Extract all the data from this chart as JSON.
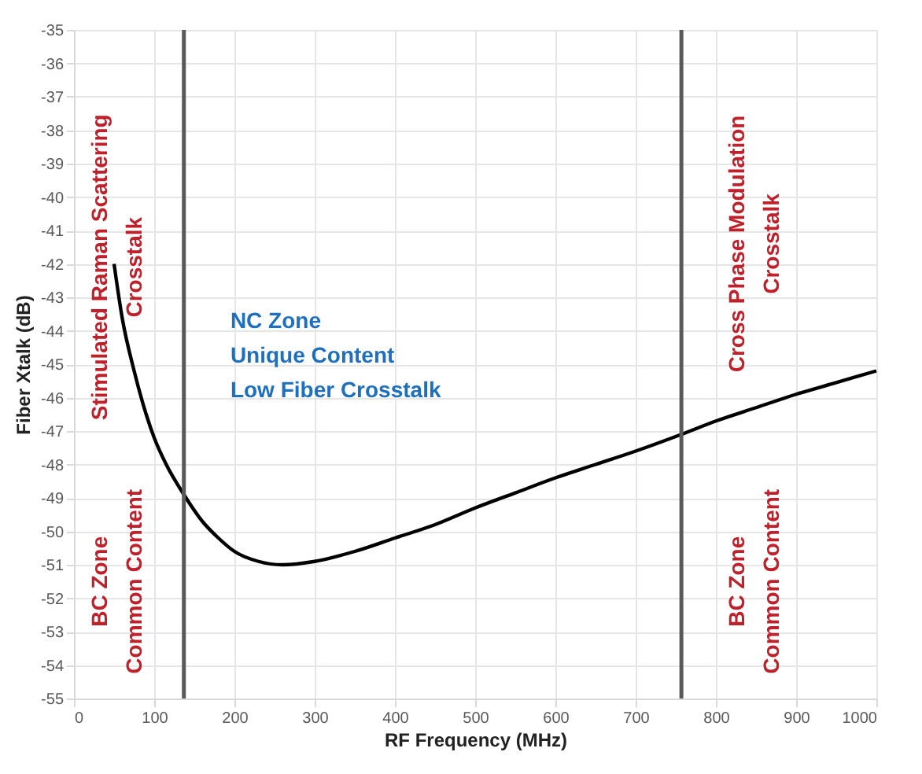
{
  "chart_data": {
    "type": "line",
    "xlabel": "RF Frequency (MHz)",
    "ylabel": "Fiber Xtalk (dB)",
    "x": [
      50,
      60,
      75,
      90,
      100,
      115,
      137,
      160,
      180,
      200,
      230,
      260,
      300,
      350,
      400,
      450,
      500,
      550,
      600,
      650,
      700,
      757,
      800,
      850,
      900,
      950,
      1000
    ],
    "series": [
      {
        "color": "#000000",
        "values": [
          -42.0,
          -43.6,
          -45.2,
          -46.5,
          -47.2,
          -48.0,
          -48.9,
          -49.7,
          -50.2,
          -50.6,
          -50.9,
          -51.0,
          -50.9,
          -50.6,
          -50.2,
          -49.8,
          -49.3,
          -48.85,
          -48.4,
          -48.0,
          -47.6,
          -47.1,
          -46.7,
          -46.3,
          -45.9,
          -45.55,
          -45.2
        ]
      }
    ],
    "xlim": [
      0,
      1000
    ],
    "xticks": [
      0,
      100,
      200,
      300,
      400,
      500,
      600,
      700,
      800,
      900,
      1000
    ],
    "ylim": [
      -55,
      -35
    ],
    "yticks": [
      -55,
      -54,
      -53,
      -52,
      -51,
      -50,
      -49,
      -48,
      -47,
      -46,
      -45,
      -44,
      -43,
      -42,
      -41,
      -40,
      -39,
      -38,
      -37,
      -36,
      -35
    ],
    "grid": true,
    "marker": "none",
    "line_style": "solid",
    "ref_lines": [
      {
        "axis": "x",
        "value": 137,
        "color": "#595959"
      },
      {
        "axis": "x",
        "value": 757,
        "color": "#595959"
      }
    ],
    "annotations": [
      "Stimulated Raman Scattering\nCrosstalk",
      "BC Zone\nCommon Content",
      "NC Zone\nUnique Content\nLow Fiber Crosstalk",
      "Cross Phase Modulation\nCrosstalk",
      "BC Zone\nCommon Content"
    ]
  }
}
